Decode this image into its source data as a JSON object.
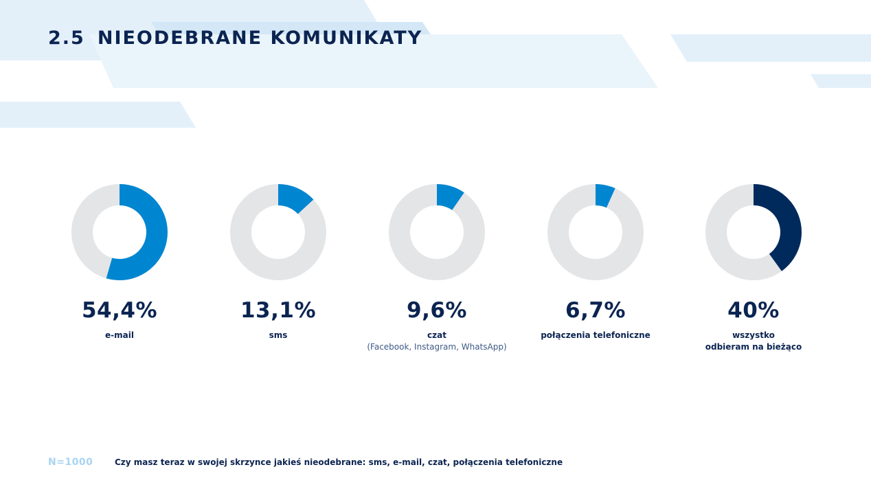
{
  "title": {
    "number": "2.5",
    "text": "NIEODEBRANE KOMUNIKATY"
  },
  "colors": {
    "primary": "#0086d1",
    "dark": "#002a5c",
    "track": "#e4e5e7",
    "title": "#0b2451",
    "deco": "#e3f0fa"
  },
  "chart_data": {
    "type": "pie",
    "variant": "donut",
    "items": [
      {
        "value": 54.4,
        "display": "54,4%",
        "label": "e-mail",
        "sublabel": "",
        "color": "#0086d1"
      },
      {
        "value": 13.1,
        "display": "13,1%",
        "label": "sms",
        "sublabel": "",
        "color": "#0086d1"
      },
      {
        "value": 9.6,
        "display": "9,6%",
        "label": "czat",
        "sublabel": "(Facebook, Instagram, WhatsApp)",
        "color": "#0086d1"
      },
      {
        "value": 6.7,
        "display": "6,7%",
        "label": "połączenia telefoniczne",
        "sublabel": "",
        "color": "#0086d1"
      },
      {
        "value": 40,
        "display": "40%",
        "label": "wszystko\nodbieram na bieżąco",
        "sublabel": "",
        "color": "#002a5c"
      }
    ]
  },
  "footer": {
    "sample": "N=1000",
    "question": "Czy masz teraz w swojej skrzynce jakieś nieodebrane: sms, e-mail, czat, połączenia telefoniczne"
  }
}
